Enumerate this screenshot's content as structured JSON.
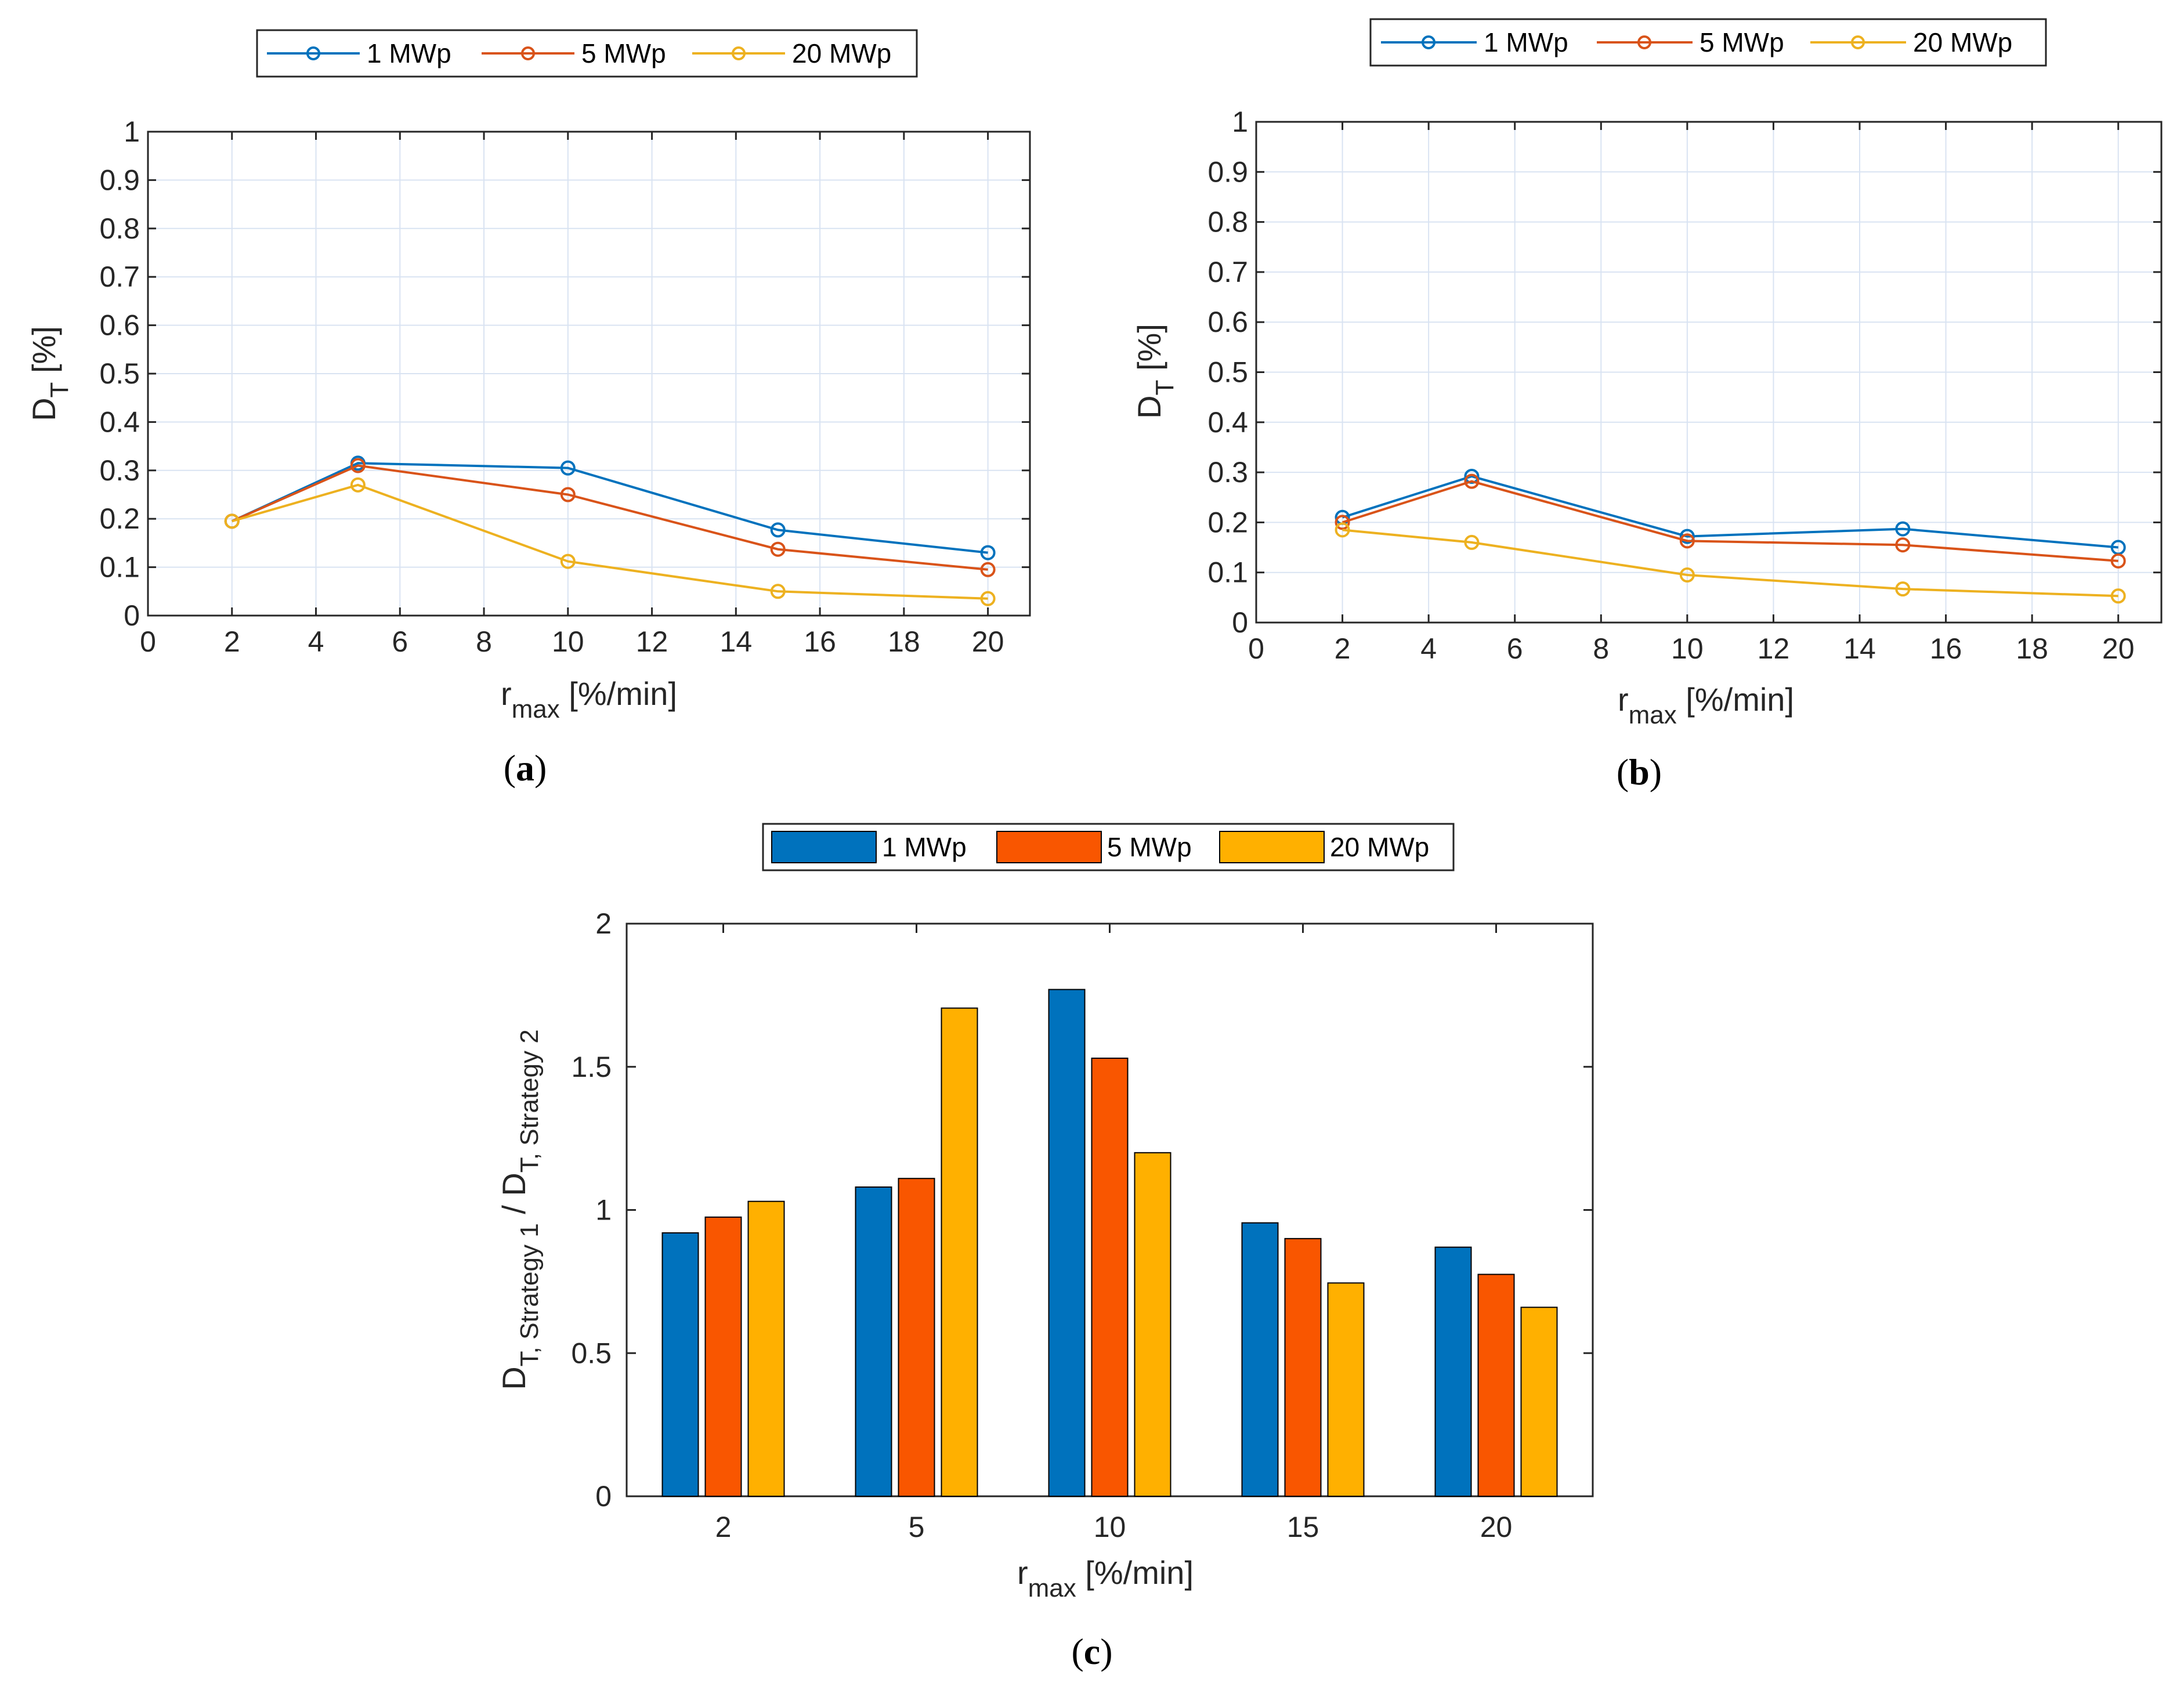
{
  "colors": {
    "blue": "#0072bd",
    "orange": "#d95319",
    "yellow": "#edb120",
    "bar_blue": "#0072bd",
    "bar_orange": "#f95600",
    "bar_yellow": "#ffb000",
    "grid": "#d9e3f2"
  },
  "chart_data": [
    {
      "id": "a",
      "type": "line",
      "caption": "a",
      "legend": [
        "1 MWp",
        "5 MWp",
        "20 MWp"
      ],
      "xlabel_main": "r",
      "xlabel_sub": "max",
      "xlabel_unit": " [%/min]",
      "ylabel_main": "D",
      "ylabel_sub": "T",
      "ylabel_unit": " [%]",
      "xlim": [
        0,
        21
      ],
      "ylim": [
        0,
        1
      ],
      "xticks": [
        0,
        2,
        4,
        6,
        8,
        10,
        12,
        14,
        16,
        18,
        20
      ],
      "yticks": [
        0,
        0.1,
        0.2,
        0.3,
        0.4,
        0.5,
        0.6,
        0.7,
        0.8,
        0.9,
        1
      ],
      "ytick_labels": [
        "0",
        "0.1",
        "0.2",
        "0.3",
        "0.4",
        "0.5",
        "0.6",
        "0.7",
        "0.8",
        "0.9",
        "1"
      ],
      "grid": true,
      "x": [
        2,
        5,
        10,
        15,
        20
      ],
      "series": [
        {
          "name": "1 MWp",
          "values": [
            0.195,
            0.315,
            0.305,
            0.177,
            0.13
          ]
        },
        {
          "name": "5 MWp",
          "values": [
            0.195,
            0.31,
            0.25,
            0.137,
            0.095
          ]
        },
        {
          "name": "20 MWp",
          "values": [
            0.195,
            0.27,
            0.112,
            0.05,
            0.035
          ]
        }
      ]
    },
    {
      "id": "b",
      "type": "line",
      "caption": "b",
      "legend": [
        "1 MWp",
        "5 MWp",
        "20 MWp"
      ],
      "xlabel_main": "r",
      "xlabel_sub": "max",
      "xlabel_unit": " [%/min]",
      "ylabel_main": "D",
      "ylabel_sub": "T",
      "ylabel_unit": " [%]",
      "xlim": [
        0,
        21
      ],
      "ylim": [
        0,
        1
      ],
      "xticks": [
        0,
        2,
        4,
        6,
        8,
        10,
        12,
        14,
        16,
        18,
        20
      ],
      "yticks": [
        0,
        0.1,
        0.2,
        0.3,
        0.4,
        0.5,
        0.6,
        0.7,
        0.8,
        0.9,
        1
      ],
      "ytick_labels": [
        "0",
        "0.1",
        "0.2",
        "0.3",
        "0.4",
        "0.5",
        "0.6",
        "0.7",
        "0.8",
        "0.9",
        "1"
      ],
      "grid": true,
      "x": [
        2,
        5,
        10,
        15,
        20
      ],
      "series": [
        {
          "name": "1 MWp",
          "values": [
            0.21,
            0.292,
            0.172,
            0.187,
            0.15
          ]
        },
        {
          "name": "5 MWp",
          "values": [
            0.2,
            0.282,
            0.163,
            0.155,
            0.123
          ]
        },
        {
          "name": "20 MWp",
          "values": [
            0.185,
            0.16,
            0.095,
            0.067,
            0.053
          ]
        }
      ]
    },
    {
      "id": "c",
      "type": "bar",
      "caption": "c",
      "legend": [
        "1 MWp",
        "5 MWp",
        "20 MWp"
      ],
      "xlabel_main": "r",
      "xlabel_sub": "max",
      "xlabel_unit": " [%/min]",
      "ylabel_parts": [
        "D",
        "T, Strategy 1",
        " / D",
        "T, Strategy 2"
      ],
      "ylim": [
        0,
        2
      ],
      "yticks": [
        0,
        0.5,
        1,
        1.5,
        2
      ],
      "ytick_labels": [
        "0",
        "0.5",
        "1",
        "1.5",
        "2"
      ],
      "grid": false,
      "categories": [
        "2",
        "5",
        "10",
        "15",
        "20"
      ],
      "series": [
        {
          "name": "1 MWp",
          "values": [
            0.92,
            1.08,
            1.77,
            0.955,
            0.87
          ]
        },
        {
          "name": "5 MWp",
          "values": [
            0.975,
            1.11,
            1.53,
            0.9,
            0.775
          ]
        },
        {
          "name": "20 MWp",
          "values": [
            1.03,
            1.705,
            1.2,
            0.745,
            0.66
          ]
        }
      ]
    }
  ]
}
